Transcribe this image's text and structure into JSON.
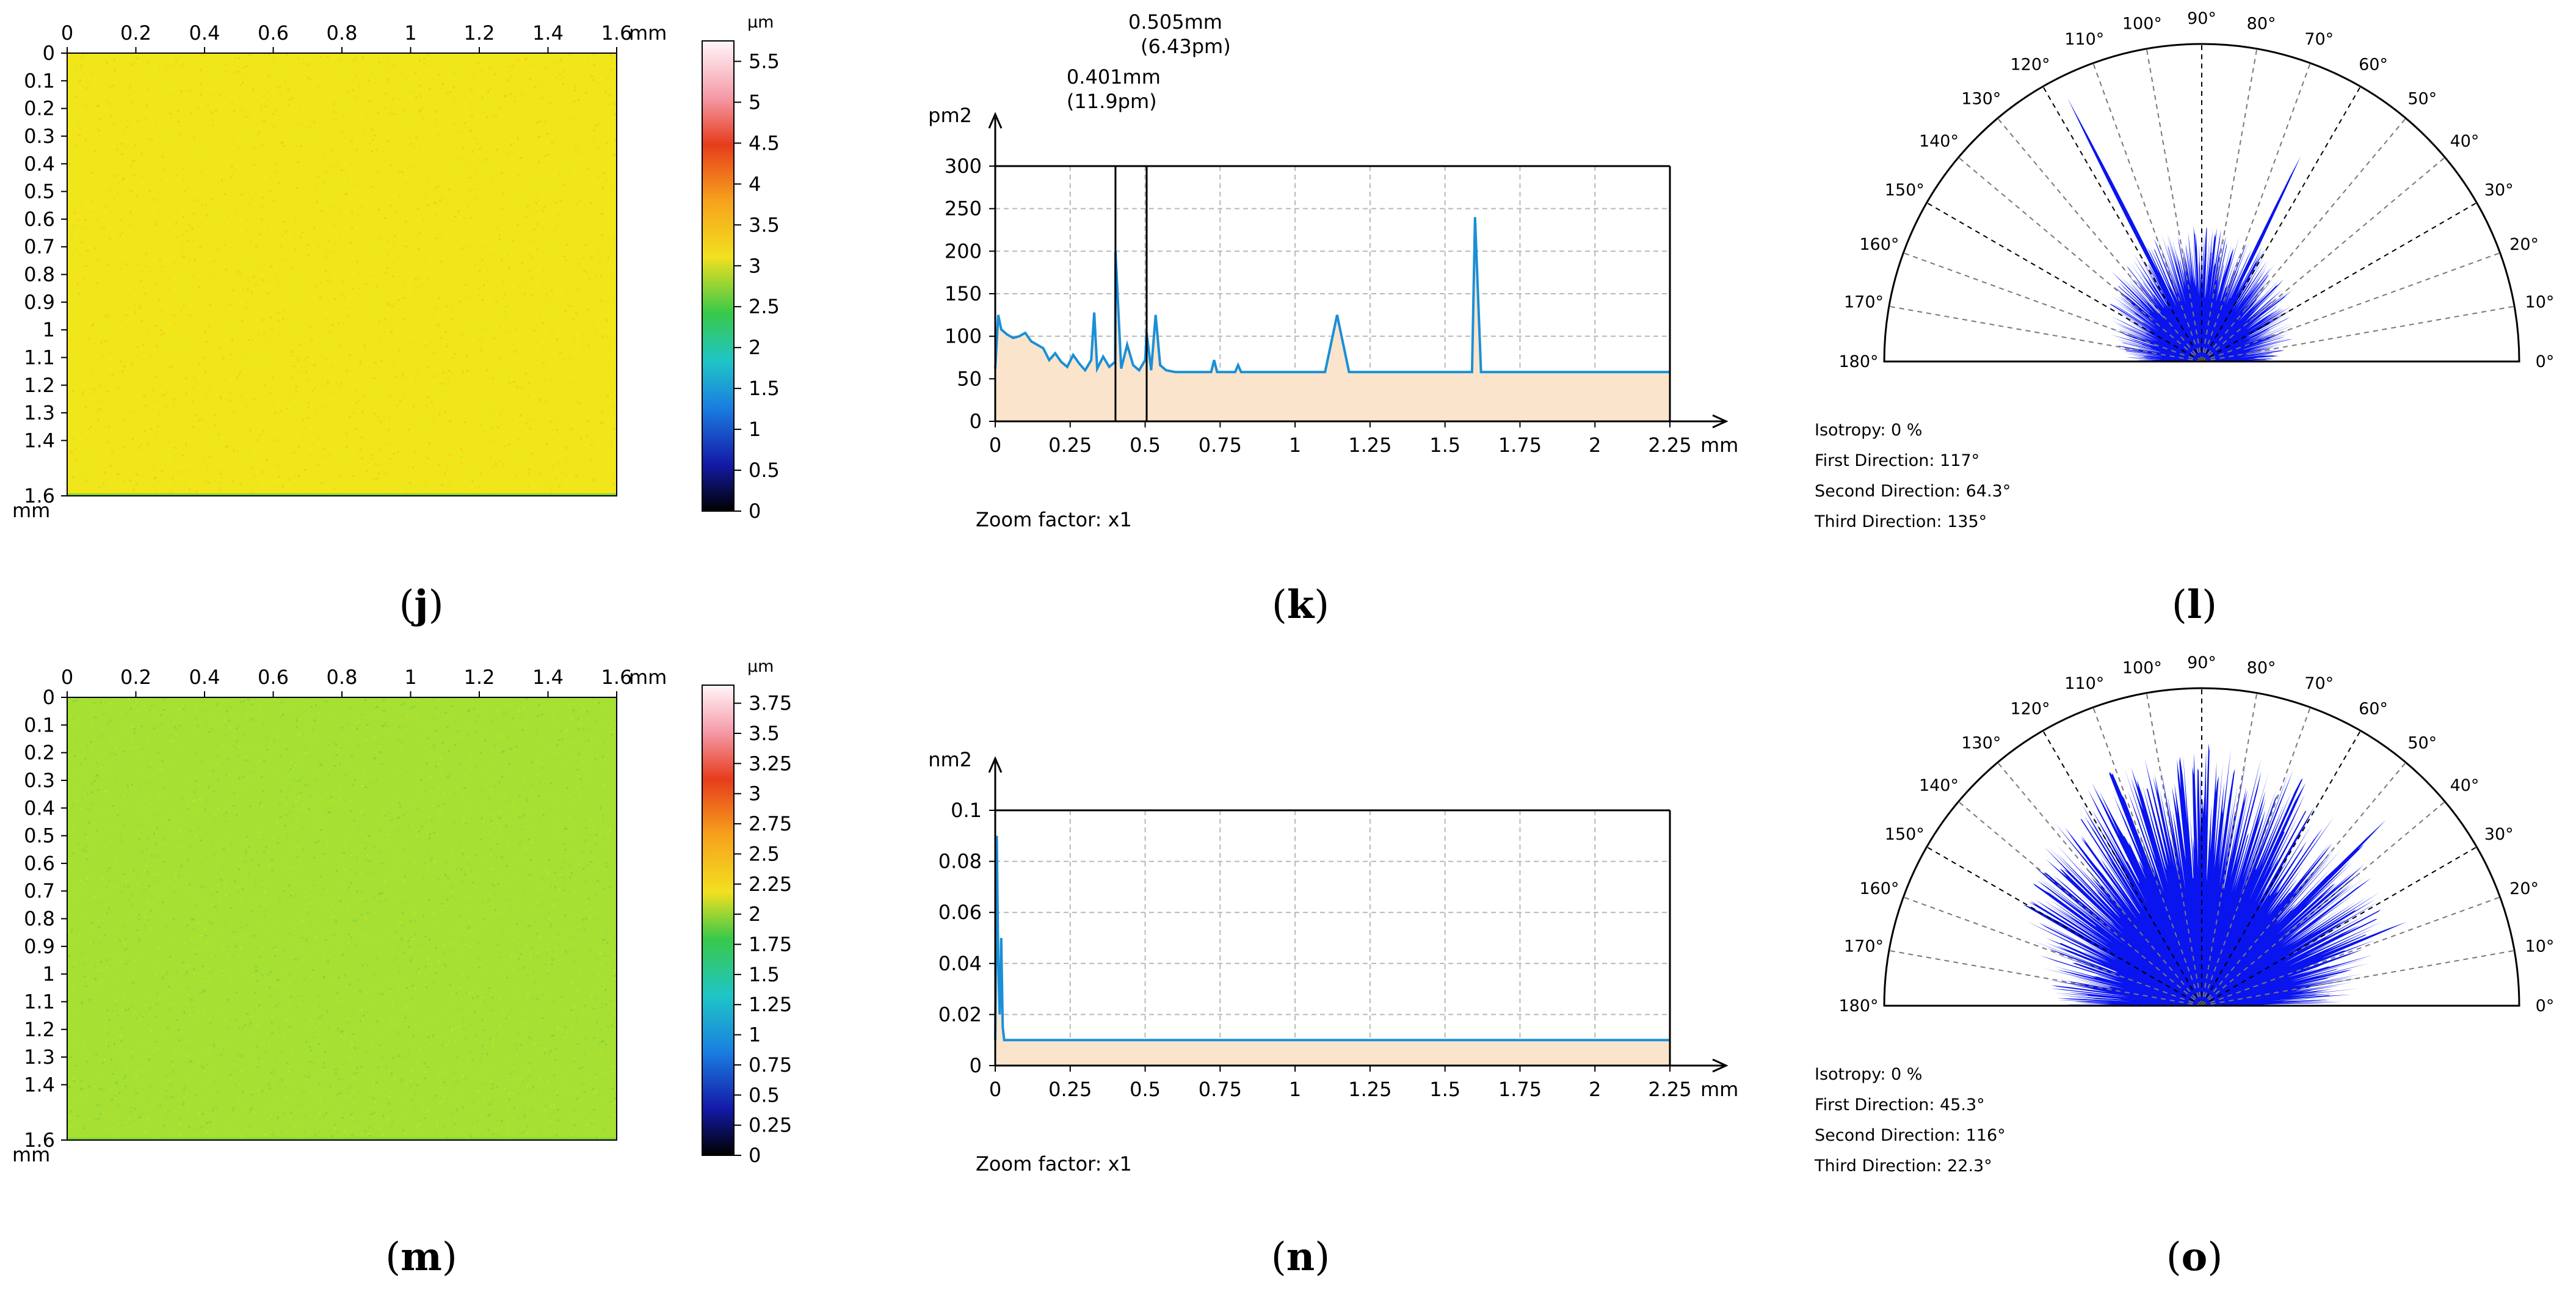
{
  "captions": [
    "j",
    "k",
    "l",
    "m",
    "n",
    "o"
  ],
  "chart_data": [
    {
      "type": "heatmap",
      "panel": "j",
      "x_ticks": [
        "0",
        "0.2",
        "0.4",
        "0.6",
        "0.8",
        "1",
        "1.2",
        "1.4",
        "1.6"
      ],
      "x_unit": "mm",
      "y_ticks": [
        "0",
        "0.1",
        "0.2",
        "0.3",
        "0.4",
        "0.5",
        "0.6",
        "0.7",
        "0.8",
        "0.9",
        "1",
        "1.1",
        "1.2",
        "1.3",
        "1.4",
        "1.6"
      ],
      "y_unit": "mm",
      "xlim": [
        0,
        1.6
      ],
      "ylim": [
        0,
        1.6
      ],
      "colorbar_unit": "µm",
      "colorbar_ticks": [
        "5.5",
        "5",
        "4.5",
        "4",
        "3.5",
        "3",
        "2.5",
        "2",
        "1.5",
        "1",
        "0.5",
        "0"
      ],
      "colorbar_range": [
        0,
        5.75
      ],
      "map_color": "#f0e619",
      "speckle_colors": [
        "#f5d21e",
        "#e8ec1e",
        "#f7c025",
        "#dfe426"
      ],
      "edge_accent": "#3cc93c"
    },
    {
      "type": "area",
      "panel": "k",
      "ylabel": "pm2",
      "xlabel": "mm",
      "x_ticks": [
        "0",
        "0.25",
        "0.5",
        "0.75",
        "1",
        "1.25",
        "1.5",
        "1.75",
        "2",
        "2.25"
      ],
      "y_ticks": [
        "0",
        "50",
        "100",
        "150",
        "200",
        "250",
        "300"
      ],
      "xlim": [
        0,
        2.25
      ],
      "ylim": [
        0,
        300
      ],
      "ybox_top": 300,
      "x": [
        0.0,
        0.01,
        0.02,
        0.04,
        0.06,
        0.08,
        0.1,
        0.12,
        0.14,
        0.16,
        0.18,
        0.2,
        0.22,
        0.24,
        0.26,
        0.28,
        0.3,
        0.32,
        0.33,
        0.34,
        0.36,
        0.38,
        0.4,
        0.401,
        0.42,
        0.44,
        0.46,
        0.48,
        0.5,
        0.505,
        0.52,
        0.535,
        0.55,
        0.57,
        0.6,
        0.72,
        0.73,
        0.74,
        0.8,
        0.81,
        0.82,
        1.1,
        1.14,
        1.18,
        1.55,
        1.59,
        1.6,
        1.62,
        2.25
      ],
      "y": [
        62,
        125,
        108,
        102,
        98,
        100,
        104,
        94,
        90,
        86,
        72,
        80,
        70,
        64,
        78,
        68,
        60,
        72,
        128,
        62,
        76,
        64,
        70,
        200,
        62,
        90,
        66,
        60,
        72,
        104,
        60,
        125,
        66,
        60,
        58,
        58,
        72,
        58,
        58,
        66,
        58,
        58,
        125,
        58,
        58,
        58,
        240,
        58,
        58
      ],
      "fill_color": "#fae5cc",
      "line_color": "#1a8fd8",
      "markers": [
        {
          "x": 0.505,
          "label1": "0.505mm",
          "label2": "(6.43pm)"
        },
        {
          "x": 0.401,
          "label1": "0.401mm",
          "label2": "(11.9pm)"
        }
      ],
      "zoom_label": "Zoom factor: x1"
    },
    {
      "type": "polar",
      "panel": "l",
      "angle_ticks": [
        "0°",
        "10°",
        "20°",
        "30°",
        "40°",
        "50°",
        "60°",
        "70°",
        "80°",
        "90°",
        "100°",
        "110°",
        "120°",
        "130°",
        "140°",
        "150°",
        "160°",
        "170°",
        "180°"
      ],
      "stats": [
        "Isotropy: 0 %",
        "First Direction: 117°",
        "Second Direction: 64.3°",
        "Third Direction: 135°"
      ],
      "fill_color": "#0a14ee",
      "base_radius": 0.33,
      "spikes": [
        {
          "angle": 117,
          "r": 0.93
        },
        {
          "angle": 64.3,
          "r": 0.74
        },
        {
          "angle": 135,
          "r": 0.4
        }
      ]
    },
    {
      "type": "heatmap",
      "panel": "m",
      "x_ticks": [
        "0",
        "0.2",
        "0.4",
        "0.6",
        "0.8",
        "1",
        "1.2",
        "1.4",
        "1.6"
      ],
      "x_unit": "mm",
      "y_ticks": [
        "0",
        "0.1",
        "0.2",
        "0.3",
        "0.4",
        "0.5",
        "0.6",
        "0.7",
        "0.8",
        "0.9",
        "1",
        "1.1",
        "1.2",
        "1.3",
        "1.4",
        "1.6"
      ],
      "y_unit": "mm",
      "xlim": [
        0,
        1.6
      ],
      "ylim": [
        0,
        1.6
      ],
      "colorbar_unit": "µm",
      "colorbar_ticks": [
        "3.75",
        "3.5",
        "3.25",
        "3",
        "2.75",
        "2.5",
        "2.25",
        "2",
        "1.75",
        "1.5",
        "1.25",
        "1",
        "0.75",
        "0.5",
        "0.25",
        "0"
      ],
      "colorbar_range": [
        0,
        3.9
      ],
      "map_color": "#a5e032",
      "speckle_colors": [
        "#8fd93a",
        "#b8e62a",
        "#7ccf3e",
        "#c2e826"
      ],
      "edge_accent": "#6fcc3a"
    },
    {
      "type": "area",
      "panel": "n",
      "ylabel": "nm2",
      "xlabel": "mm",
      "x_ticks": [
        "0",
        "0.25",
        "0.5",
        "0.75",
        "1",
        "1.25",
        "1.5",
        "1.75",
        "2",
        "2.25"
      ],
      "y_ticks": [
        "0",
        "0.02",
        "0.04",
        "0.06",
        "0.08",
        "0.1"
      ],
      "xlim": [
        0,
        2.25
      ],
      "ylim": [
        0,
        0.1
      ],
      "ybox_top": 0.1,
      "x": [
        0.0,
        0.005,
        0.01,
        0.015,
        0.02,
        0.025,
        0.03,
        0.04,
        0.05,
        2.25
      ],
      "y": [
        0.01,
        0.09,
        0.04,
        0.02,
        0.05,
        0.015,
        0.01,
        0.01,
        0.01,
        0.01
      ],
      "fill_color": "#fae5cc",
      "line_color": "#1a8fd8",
      "zoom_label": "Zoom factor: x1"
    },
    {
      "type": "polar",
      "panel": "o",
      "angle_ticks": [
        "0°",
        "10°",
        "20°",
        "30°",
        "40°",
        "50°",
        "60°",
        "70°",
        "80°",
        "90°",
        "100°",
        "110°",
        "120°",
        "130°",
        "140°",
        "150°",
        "160°",
        "170°",
        "180°"
      ],
      "stats": [
        "Isotropy: 0 %",
        "First Direction: 45.3°",
        "Second Direction: 116°",
        "Third Direction: 22.3°"
      ],
      "fill_color": "#0a14ee",
      "base_radius": 0.63,
      "spikes": [
        {
          "angle": 45.3,
          "r": 0.85
        },
        {
          "angle": 116,
          "r": 0.7
        },
        {
          "angle": 22.3,
          "r": 0.72
        }
      ]
    }
  ]
}
